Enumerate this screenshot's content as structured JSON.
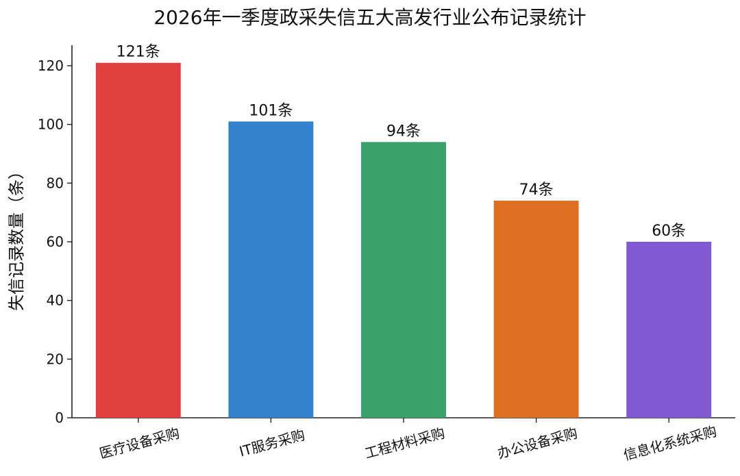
{
  "chart_data": {
    "type": "bar",
    "title": "2026年一季度政采失信五大高发行业公布记录统计",
    "xlabel": "",
    "ylabel": "失信记录数量（条）",
    "categories": [
      "医疗设备采购",
      "IT服务采购",
      "工程材料采购",
      "办公设备采购",
      "信息化系统采购"
    ],
    "values": [
      121,
      101,
      94,
      74,
      60
    ],
    "data_labels": [
      "121条",
      "101条",
      "94条",
      "74条",
      "60条"
    ],
    "colors": [
      "#E04040",
      "#3282CE",
      "#3AA06A",
      "#DE6E22",
      "#805AD2"
    ],
    "ylim": [
      0,
      127
    ],
    "yticks": [
      0,
      20,
      40,
      60,
      80,
      100,
      120
    ],
    "grid": false,
    "legend": "none"
  }
}
